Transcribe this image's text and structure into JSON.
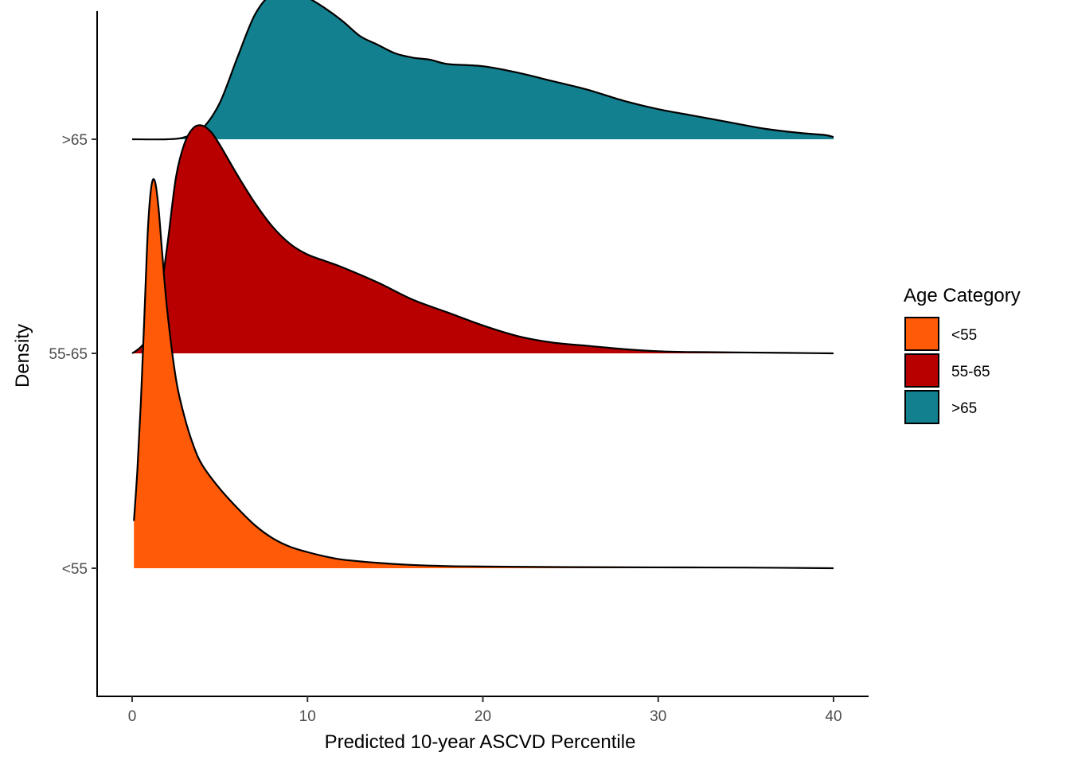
{
  "chart_data": {
    "type": "area",
    "subtype": "ridgeline-density",
    "xlabel": "Predicted 10-year ASCVD Percentile",
    "ylabel": "Density",
    "xlim": [
      -2,
      41
    ],
    "x_ticks": [
      0,
      10,
      20,
      30,
      40
    ],
    "categories": [
      "<55",
      "55-65",
      ">65"
    ],
    "legend": {
      "title": "Age Category",
      "position": "right"
    },
    "grid": false,
    "series": [
      {
        "name": "<55",
        "color": "#FF5A08",
        "points": [
          [
            0.1,
            0.22
          ],
          [
            0.3,
            0.46
          ],
          [
            0.5,
            0.78
          ],
          [
            0.7,
            1.18
          ],
          [
            0.9,
            1.58
          ],
          [
            1.1,
            1.78
          ],
          [
            1.3,
            1.8
          ],
          [
            1.5,
            1.68
          ],
          [
            1.7,
            1.48
          ],
          [
            2.0,
            1.2
          ],
          [
            2.5,
            0.88
          ],
          [
            3.0,
            0.7
          ],
          [
            3.5,
            0.57
          ],
          [
            4.0,
            0.48
          ],
          [
            5.0,
            0.37
          ],
          [
            6.0,
            0.28
          ],
          [
            7.0,
            0.2
          ],
          [
            8.0,
            0.14
          ],
          [
            9.0,
            0.1
          ],
          [
            10.0,
            0.075
          ],
          [
            11.0,
            0.055
          ],
          [
            12.0,
            0.04
          ],
          [
            14.0,
            0.025
          ],
          [
            16.0,
            0.015
          ],
          [
            18.0,
            0.01
          ],
          [
            20.0,
            0.008
          ],
          [
            25.0,
            0.005
          ],
          [
            30.0,
            0.004
          ],
          [
            35.0,
            0.003
          ],
          [
            40.0,
            0.0
          ]
        ]
      },
      {
        "name": "55-65",
        "color": "#B80000",
        "points": [
          [
            0.0,
            0.0
          ],
          [
            0.5,
            0.03
          ],
          [
            1.0,
            0.09
          ],
          [
            1.5,
            0.22
          ],
          [
            2.0,
            0.5
          ],
          [
            2.5,
            0.82
          ],
          [
            3.0,
            0.98
          ],
          [
            3.5,
            1.05
          ],
          [
            4.0,
            1.06
          ],
          [
            4.5,
            1.03
          ],
          [
            5.0,
            0.97
          ],
          [
            6.0,
            0.83
          ],
          [
            7.0,
            0.7
          ],
          [
            8.0,
            0.59
          ],
          [
            9.0,
            0.51
          ],
          [
            10.0,
            0.46
          ],
          [
            11.0,
            0.43
          ],
          [
            12.0,
            0.4
          ],
          [
            14.0,
            0.33
          ],
          [
            16.0,
            0.25
          ],
          [
            18.0,
            0.19
          ],
          [
            20.0,
            0.13
          ],
          [
            22.0,
            0.08
          ],
          [
            24.0,
            0.05
          ],
          [
            26.0,
            0.035
          ],
          [
            28.0,
            0.02
          ],
          [
            30.0,
            0.01
          ],
          [
            32.0,
            0.006
          ],
          [
            35.0,
            0.004
          ],
          [
            40.0,
            0.0
          ]
        ]
      },
      {
        "name": ">65",
        "color": "#13808F",
        "points": [
          [
            0.0,
            0.0
          ],
          [
            2.0,
            0.0
          ],
          [
            3.0,
            0.01
          ],
          [
            4.0,
            0.05
          ],
          [
            5.0,
            0.17
          ],
          [
            6.0,
            0.38
          ],
          [
            7.0,
            0.58
          ],
          [
            8.0,
            0.68
          ],
          [
            9.0,
            0.7
          ],
          [
            10.0,
            0.66
          ],
          [
            11.0,
            0.61
          ],
          [
            12.0,
            0.55
          ],
          [
            13.0,
            0.48
          ],
          [
            14.0,
            0.44
          ],
          [
            15.0,
            0.4
          ],
          [
            16.0,
            0.38
          ],
          [
            17.0,
            0.37
          ],
          [
            18.0,
            0.35
          ],
          [
            20.0,
            0.34
          ],
          [
            22.0,
            0.31
          ],
          [
            24.0,
            0.27
          ],
          [
            26.0,
            0.23
          ],
          [
            28.0,
            0.18
          ],
          [
            30.0,
            0.14
          ],
          [
            32.0,
            0.11
          ],
          [
            34.0,
            0.08
          ],
          [
            36.0,
            0.05
          ],
          [
            38.0,
            0.03
          ],
          [
            39.5,
            0.02
          ],
          [
            40.0,
            0.01
          ]
        ]
      }
    ]
  }
}
